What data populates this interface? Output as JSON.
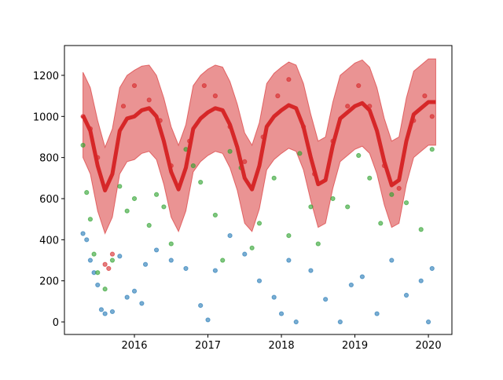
{
  "chart_data": {
    "type": "scatter",
    "xlim": [
      2015.048,
      2020.32
    ],
    "ylim": [
      -61,
      1345
    ],
    "xticks": [
      2016,
      2017,
      2018,
      2019,
      2020
    ],
    "yticks": [
      0,
      200,
      400,
      600,
      800,
      1000,
      1200
    ],
    "series": [
      {
        "type": "band",
        "color": "#d62728",
        "x": [
          2015.3,
          2015.4,
          2015.5,
          2015.6,
          2015.7,
          2015.8,
          2015.9,
          2016.0,
          2016.1,
          2016.2,
          2016.3,
          2016.4,
          2016.5,
          2016.6,
          2016.7,
          2016.8,
          2016.9,
          2017.0,
          2017.1,
          2017.2,
          2017.3,
          2017.4,
          2017.5,
          2017.6,
          2017.7,
          2017.8,
          2017.9,
          2018.0,
          2018.1,
          2018.2,
          2018.3,
          2018.4,
          2018.5,
          2018.6,
          2018.7,
          2018.8,
          2018.9,
          2019.0,
          2019.1,
          2019.2,
          2019.3,
          2019.4,
          2019.5,
          2019.6,
          2019.7,
          2019.8,
          2019.9,
          2020.0,
          2020.1
        ],
        "upper": [
          1215,
          1140,
          980,
          850,
          940,
          1140,
          1200,
          1225,
          1245,
          1250,
          1200,
          1090,
          950,
          860,
          960,
          1150,
          1200,
          1230,
          1250,
          1240,
          1170,
          1060,
          920,
          860,
          970,
          1160,
          1210,
          1240,
          1265,
          1250,
          1160,
          1010,
          880,
          900,
          1070,
          1200,
          1230,
          1260,
          1275,
          1240,
          1140,
          990,
          880,
          900,
          1090,
          1220,
          1250,
          1280,
          1280
        ],
        "lower": [
          800,
          720,
          540,
          430,
          510,
          720,
          780,
          790,
          820,
          830,
          790,
          670,
          510,
          440,
          540,
          730,
          780,
          810,
          830,
          820,
          750,
          640,
          480,
          440,
          550,
          740,
          790,
          820,
          845,
          830,
          740,
          590,
          460,
          480,
          650,
          780,
          810,
          840,
          855,
          820,
          720,
          570,
          460,
          480,
          670,
          800,
          830,
          860,
          860
        ]
      },
      {
        "type": "scatter",
        "color": "#1f77b4",
        "x": [
          2015.3,
          2015.35,
          2015.4,
          2015.45,
          2015.5,
          2015.55,
          2015.6,
          2015.7,
          2015.8,
          2015.9,
          2016.0,
          2016.1,
          2016.15,
          2016.3,
          2016.5,
          2016.7,
          2016.9,
          2017.0,
          2017.1,
          2017.3,
          2017.5,
          2017.7,
          2017.9,
          2018.0,
          2018.1,
          2018.2,
          2018.4,
          2018.6,
          2018.8,
          2018.95,
          2019.1,
          2019.3,
          2019.5,
          2019.7,
          2019.9,
          2020.0,
          2020.05
        ],
        "values": [
          430,
          400,
          300,
          240,
          180,
          60,
          40,
          50,
          320,
          120,
          150,
          90,
          280,
          350,
          300,
          260,
          80,
          10,
          250,
          420,
          330,
          200,
          120,
          40,
          300,
          0,
          250,
          110,
          0,
          180,
          220,
          40,
          300,
          130,
          200,
          0,
          260
        ]
      },
      {
        "type": "scatter",
        "color": "#2ca02c",
        "x": [
          2015.3,
          2015.35,
          2015.4,
          2015.45,
          2015.5,
          2015.6,
          2015.7,
          2015.8,
          2015.9,
          2016.0,
          2016.2,
          2016.3,
          2016.4,
          2016.5,
          2016.7,
          2016.8,
          2016.9,
          2017.1,
          2017.2,
          2017.3,
          2017.45,
          2017.6,
          2017.7,
          2017.9,
          2018.1,
          2018.25,
          2018.4,
          2018.5,
          2018.7,
          2018.9,
          2019.05,
          2019.2,
          2019.35,
          2019.5,
          2019.7,
          2019.9,
          2020.05
        ],
        "values": [
          860,
          630,
          500,
          330,
          240,
          160,
          300,
          660,
          540,
          600,
          470,
          620,
          560,
          380,
          840,
          760,
          680,
          520,
          300,
          830,
          750,
          360,
          480,
          700,
          420,
          820,
          560,
          380,
          600,
          560,
          810,
          700,
          480,
          620,
          580,
          450,
          840
        ]
      },
      {
        "type": "scatter",
        "color": "#d62728",
        "x": [
          2015.3,
          2015.4,
          2015.5,
          2015.6,
          2015.65,
          2015.7,
          2015.85,
          2016.0,
          2016.2,
          2016.35,
          2016.5,
          2016.75,
          2016.95,
          2017.1,
          2017.3,
          2017.5,
          2017.75,
          2017.95,
          2018.1,
          2018.3,
          2018.45,
          2018.7,
          2018.9,
          2019.05,
          2019.2,
          2019.4,
          2019.6,
          2019.8,
          2019.95,
          2020.05
        ],
        "values": [
          1000,
          940,
          800,
          280,
          260,
          330,
          1050,
          1150,
          1080,
          980,
          760,
          880,
          1150,
          1100,
          950,
          780,
          900,
          1100,
          1180,
          950,
          720,
          880,
          1050,
          1150,
          1050,
          760,
          650,
          980,
          1100,
          1000
        ]
      },
      {
        "type": "line",
        "color": "#d62728",
        "x": [
          2015.3,
          2015.4,
          2015.5,
          2015.6,
          2015.7,
          2015.8,
          2015.9,
          2016.0,
          2016.1,
          2016.2,
          2016.3,
          2016.4,
          2016.5,
          2016.6,
          2016.7,
          2016.8,
          2016.9,
          2017.0,
          2017.1,
          2017.2,
          2017.3,
          2017.4,
          2017.5,
          2017.6,
          2017.7,
          2017.8,
          2017.9,
          2018.0,
          2018.1,
          2018.2,
          2018.3,
          2018.4,
          2018.5,
          2018.6,
          2018.7,
          2018.8,
          2018.9,
          2019.0,
          2019.1,
          2019.2,
          2019.3,
          2019.4,
          2019.5,
          2019.6,
          2019.7,
          2019.8,
          2019.9,
          2020.0,
          2020.1
        ],
        "values": [
          1005,
          930,
          760,
          640,
          720,
          930,
          990,
          1000,
          1030,
          1040,
          1000,
          880,
          730,
          645,
          750,
          940,
          990,
          1020,
          1040,
          1030,
          960,
          850,
          700,
          645,
          760,
          950,
          1000,
          1030,
          1055,
          1040,
          950,
          800,
          670,
          690,
          860,
          990,
          1020,
          1050,
          1065,
          1030,
          930,
          780,
          665,
          690,
          880,
          1010,
          1040,
          1070,
          1070
        ]
      }
    ]
  }
}
